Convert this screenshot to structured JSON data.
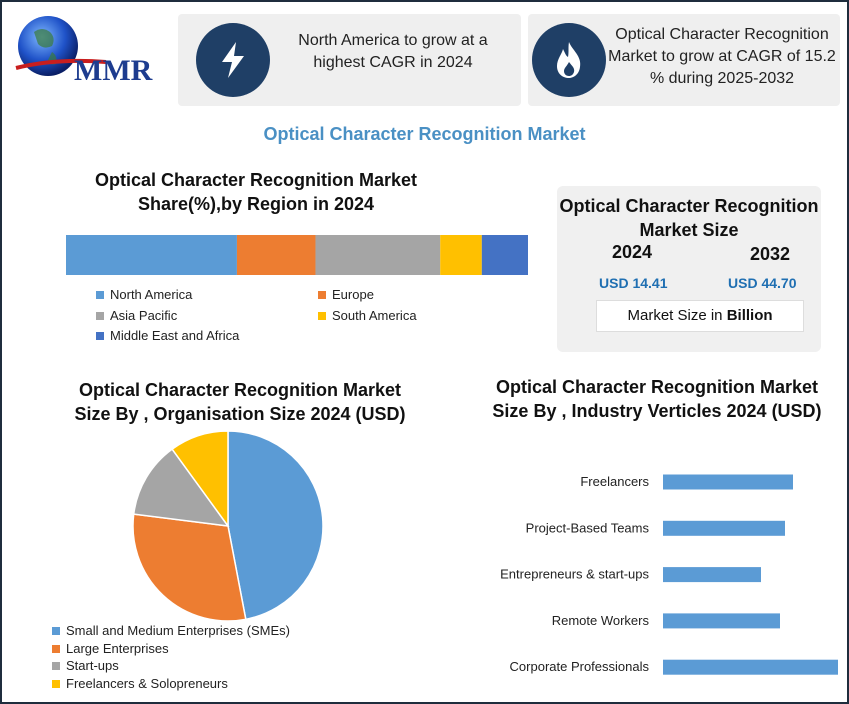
{
  "logo": {
    "text": "MMR"
  },
  "banners": [
    {
      "icon": "lightning-icon",
      "text": "North America to grow at a highest CAGR in 2024"
    },
    {
      "icon": "flame-icon",
      "text": "Optical Character Recognition Market to grow at CAGR of 15.2 % during 2025-2032"
    }
  ],
  "main_title": "Optical Character Recognition Market",
  "market_size": {
    "title": "Optical Character Recognition Market Size",
    "year1": "2024",
    "year2": "2032",
    "value1": "USD 14.41",
    "value2": "USD 44.70",
    "unit_prefix": "Market Size in ",
    "unit_bold": "Billion"
  },
  "colors": {
    "blue": "#5b9bd5",
    "orange": "#ed7d31",
    "gray": "#a5a5a5",
    "yellow": "#ffc000",
    "darkblue": "#4472c4",
    "navy": "#1f3f66"
  },
  "chart_data": [
    {
      "type": "bar",
      "orientation": "stacked-horizontal",
      "title": "Optical Character Recognition Market Share(%),by Region in 2024",
      "categories": [
        "North America",
        "Europe",
        "Asia Pacific",
        "South America",
        "Middle East and Africa"
      ],
      "values": [
        37,
        17,
        27,
        9,
        10
      ],
      "colors": [
        "#5b9bd5",
        "#ed7d31",
        "#a5a5a5",
        "#ffc000",
        "#4472c4"
      ],
      "legend": [
        "North America",
        "Europe",
        "Asia Pacific",
        "South America",
        "Middle East and Africa"
      ]
    },
    {
      "type": "pie",
      "title": "Optical Character Recognition Market Size By , Organisation Size  2024  (USD)",
      "categories": [
        "Small and Medium Enterprises (SMEs)",
        "Large Enterprises",
        "Start-ups",
        "Freelancers & Solopreneurs"
      ],
      "values": [
        47,
        30,
        13,
        10
      ],
      "colors": [
        "#5b9bd5",
        "#ed7d31",
        "#a5a5a5",
        "#ffc000"
      ]
    },
    {
      "type": "bar",
      "orientation": "horizontal",
      "title": "Optical Character Recognition Market Size By , Industry Verticles 2024  (USD)",
      "categories": [
        "Freelancers",
        "Project-Based Teams",
        "Entrepreneurs & start-ups",
        "Remote Workers",
        "Corporate Professionals"
      ],
      "values": [
        13,
        12.2,
        9.8,
        11.7,
        17.5
      ],
      "xlim": [
        0,
        17.5
      ],
      "color": "#5b9bd5"
    }
  ]
}
